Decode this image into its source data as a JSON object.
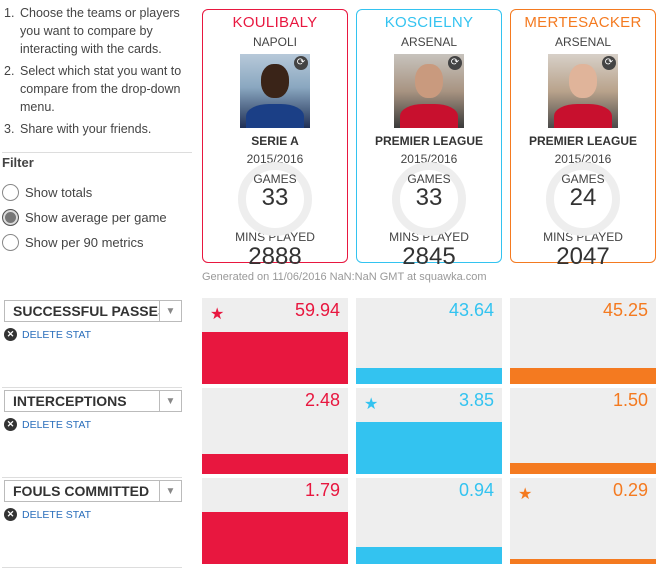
{
  "instructions": [
    {
      "num": "1.",
      "text": "Choose the teams or players you want to compare by interacting with the cards."
    },
    {
      "num": "2.",
      "text": "Select which stat you want to compare from the drop-down menu."
    },
    {
      "num": "3.",
      "text": "Share with your friends."
    }
  ],
  "filter": {
    "title": "Filter",
    "options": [
      {
        "label": "Show totals",
        "checked": false
      },
      {
        "label": "Show average per game",
        "checked": true
      },
      {
        "label": "Show per 90 metrics",
        "checked": false
      }
    ]
  },
  "players": [
    {
      "name": "KOULIBALY",
      "club": "NAPOLI",
      "league": "SERIE A",
      "season": "2015/2016",
      "games_label": "GAMES",
      "games": "33",
      "mins_label": "MINS PLAYED",
      "mins": "2888",
      "color": "#e8173f"
    },
    {
      "name": "KOSCIELNY",
      "club": "ARSENAL",
      "league": "PREMIER LEAGUE",
      "season": "2015/2016",
      "games_label": "GAMES",
      "games": "33",
      "mins_label": "MINS PLAYED",
      "mins": "2845",
      "color": "#33c3f0"
    },
    {
      "name": "MERTESACKER",
      "club": "ARSENAL",
      "league": "PREMIER LEAGUE",
      "season": "2015/2016",
      "games_label": "GAMES",
      "games": "24",
      "mins_label": "MINS PLAYED",
      "mins": "2047",
      "color": "#f47a20"
    }
  ],
  "generated": "Generated on 11/06/2016 NaN:NaN GMT at squawka.com",
  "delete_label": "DELETE STAT",
  "stats": [
    {
      "name": "SUCCESSFUL PASSES",
      "values": [
        "59.94",
        "43.64",
        "45.25"
      ],
      "fraction": [
        1.0,
        0.3,
        0.3
      ],
      "star": 0
    },
    {
      "name": "INTERCEPTIONS",
      "values": [
        "2.48",
        "3.85",
        "1.50"
      ],
      "fraction": [
        0.38,
        1.0,
        0.22
      ],
      "star": 1
    },
    {
      "name": "FOULS COMMITTED",
      "values": [
        "1.79",
        "0.94",
        "0.29"
      ],
      "fraction": [
        1.0,
        0.32,
        0.1
      ],
      "star": 2
    }
  ]
}
